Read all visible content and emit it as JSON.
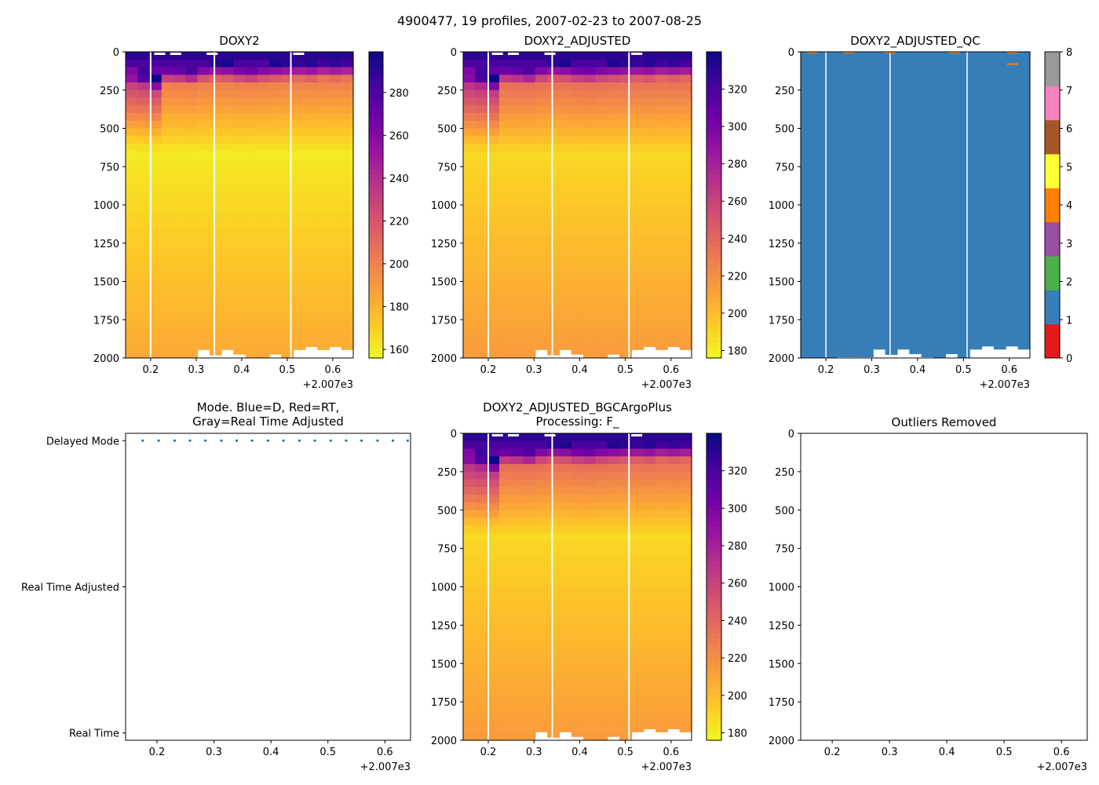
{
  "figure": {
    "suptitle": "4900477, 19 profiles, 2007-02-23 to 2007-08-25"
  },
  "palette": {
    "plasma_r": [
      "#f0f921",
      "#fdca26",
      "#fb9f3a",
      "#ed7953",
      "#d8576b",
      "#bd3786",
      "#9c179e",
      "#7201a8",
      "#46039f",
      "#0d0887"
    ],
    "qc": [
      "#e41a1c",
      "#377eb8",
      "#4daf4a",
      "#984ea3",
      "#ff7f00",
      "#ffff33",
      "#a65628",
      "#f781bf",
      "#999999"
    ],
    "mode_dot": "#1f77b4"
  },
  "chart_data": [
    {
      "id": "doxy2",
      "type": "heatmap",
      "title": "DOXY2",
      "xlabel": "",
      "ylabel": "",
      "x_offset_label": "+2.007e3",
      "xlim": [
        0.145,
        0.645
      ],
      "ylim": [
        2000,
        0
      ],
      "xticks": [
        "0.2",
        "0.3",
        "0.4",
        "0.5",
        "0.6"
      ],
      "yticks": [
        "0",
        "250",
        "500",
        "750",
        "1000",
        "1250",
        "1500",
        "1750",
        "2000"
      ],
      "colorbar": {
        "min": 156,
        "max": 299,
        "ticks": [
          "160",
          "180",
          "200",
          "220",
          "240",
          "260",
          "280"
        ]
      },
      "profile_times": [
        0.148,
        0.175,
        0.203,
        0.231,
        0.258,
        0.285,
        0.313,
        0.34,
        0.367,
        0.395,
        0.422,
        0.45,
        0.477,
        0.505,
        0.532,
        0.559,
        0.587,
        0.614,
        0.64
      ],
      "profile_max_depth": [
        2000,
        2000,
        2000,
        1995,
        1995,
        1995,
        1945,
        1980,
        1945,
        1975,
        1995,
        2000,
        1975,
        2000,
        1945,
        1925,
        1945,
        1925,
        1945
      ],
      "surface_layer_depth": [
        80,
        110,
        140,
        90,
        95,
        105,
        80,
        70,
        75,
        85,
        90,
        80,
        75,
        70,
        65,
        70,
        60,
        65,
        60
      ],
      "gap_lines": [
        0.2,
        0.34,
        0.508
      ],
      "data_gap_marks": [
        0.22,
        0.255,
        0.335,
        0.525
      ]
    },
    {
      "id": "doxy2-adjusted",
      "type": "heatmap",
      "title": "DOXY2_ADJUSTED",
      "xlabel": "",
      "ylabel": "",
      "x_offset_label": "+2.007e3",
      "xlim": [
        0.145,
        0.645
      ],
      "ylim": [
        2000,
        0
      ],
      "xticks": [
        "0.2",
        "0.3",
        "0.4",
        "0.5",
        "0.6"
      ],
      "yticks": [
        "0",
        "250",
        "500",
        "750",
        "1000",
        "1250",
        "1500",
        "1750",
        "2000"
      ],
      "colorbar": {
        "min": 176,
        "max": 340,
        "ticks": [
          "180",
          "200",
          "220",
          "240",
          "260",
          "280",
          "300",
          "320"
        ]
      },
      "profile_times": [
        0.148,
        0.175,
        0.203,
        0.231,
        0.258,
        0.285,
        0.313,
        0.34,
        0.367,
        0.395,
        0.422,
        0.45,
        0.477,
        0.505,
        0.532,
        0.559,
        0.587,
        0.614,
        0.64
      ],
      "profile_max_depth": [
        2000,
        2000,
        2000,
        1995,
        1995,
        1995,
        1945,
        1980,
        1945,
        1975,
        1995,
        2000,
        1975,
        2000,
        1945,
        1925,
        1945,
        1925,
        1945
      ],
      "surface_layer_depth": [
        80,
        110,
        140,
        90,
        95,
        105,
        80,
        70,
        75,
        85,
        90,
        80,
        75,
        70,
        65,
        70,
        60,
        65,
        60
      ],
      "gap_lines": [
        0.2,
        0.34,
        0.508
      ],
      "data_gap_marks": [
        0.22,
        0.255,
        0.335,
        0.525
      ]
    },
    {
      "id": "doxy2-adjusted-qc",
      "type": "heatmap",
      "title": "DOXY2_ADJUSTED_QC",
      "xlabel": "",
      "ylabel": "",
      "x_offset_label": "+2.007e3",
      "xlim": [
        0.145,
        0.645
      ],
      "ylim": [
        2000,
        0
      ],
      "xticks": [
        "0.2",
        "0.3",
        "0.4",
        "0.5",
        "0.6"
      ],
      "yticks": [
        "0",
        "250",
        "500",
        "750",
        "1000",
        "1250",
        "1500",
        "1750",
        "2000"
      ],
      "colorbar": {
        "min": 0,
        "max": 8,
        "ticks": [
          "0",
          "1",
          "2",
          "3",
          "4",
          "5",
          "6",
          "7",
          "8"
        ]
      },
      "fill_flag": 1,
      "flag4_marks": [
        {
          "x": 0.17,
          "depth": 10
        },
        {
          "x": 0.25,
          "depth": 10
        },
        {
          "x": 0.34,
          "depth": 10
        },
        {
          "x": 0.48,
          "depth": 10
        },
        {
          "x": 0.607,
          "depth": 10
        },
        {
          "x": 0.607,
          "depth": 85
        }
      ],
      "profile_max_depth": [
        2000,
        2000,
        2000,
        1995,
        1995,
        1995,
        1945,
        1980,
        1945,
        1975,
        1995,
        2000,
        1975,
        2000,
        1945,
        1925,
        1945,
        1925,
        1945
      ],
      "gap_lines": [
        0.2,
        0.34,
        0.508
      ]
    },
    {
      "id": "mode",
      "type": "scatter",
      "title_lines": [
        "Mode. Blue=D, Red=RT,",
        "Gray=Real Time Adjusted"
      ],
      "xlabel": "",
      "x_offset_label": "+2.007e3",
      "xlim": [
        0.145,
        0.645
      ],
      "xticks": [
        "0.2",
        "0.3",
        "0.4",
        "0.5",
        "0.6"
      ],
      "ycategories": [
        "Real Time",
        "Real Time Adjusted",
        "Delayed Mode"
      ],
      "ylim": [
        -0.05,
        2.05
      ],
      "x": [
        0.175,
        0.203,
        0.231,
        0.258,
        0.285,
        0.313,
        0.34,
        0.367,
        0.395,
        0.422,
        0.45,
        0.477,
        0.505,
        0.532,
        0.559,
        0.587,
        0.614,
        0.64
      ],
      "y": [
        2,
        2,
        2,
        2,
        2,
        2,
        2,
        2,
        2,
        2,
        2,
        2,
        2,
        2,
        2,
        2,
        2,
        2
      ]
    },
    {
      "id": "doxy2-bgc",
      "type": "heatmap",
      "title_lines": [
        "DOXY2_ADJUSTED_BGCArgoPlus",
        "Processing: F_"
      ],
      "xlabel": "",
      "ylabel": "",
      "x_offset_label": "+2.007e3",
      "xlim": [
        0.145,
        0.645
      ],
      "ylim": [
        2000,
        0
      ],
      "xticks": [
        "0.2",
        "0.3",
        "0.4",
        "0.5",
        "0.6"
      ],
      "yticks": [
        "0",
        "250",
        "500",
        "750",
        "1000",
        "1250",
        "1500",
        "1750",
        "2000"
      ],
      "colorbar": {
        "min": 176,
        "max": 340,
        "ticks": [
          "180",
          "200",
          "220",
          "240",
          "260",
          "280",
          "300",
          "320"
        ]
      },
      "profile_times": [
        0.148,
        0.175,
        0.203,
        0.231,
        0.258,
        0.285,
        0.313,
        0.34,
        0.367,
        0.395,
        0.422,
        0.45,
        0.477,
        0.505,
        0.532,
        0.559,
        0.587,
        0.614,
        0.64
      ],
      "profile_max_depth": [
        2000,
        2000,
        2000,
        1995,
        1995,
        1995,
        1945,
        1980,
        1945,
        1975,
        1995,
        2000,
        1975,
        2000,
        1945,
        1925,
        1945,
        1925,
        1945
      ],
      "surface_layer_depth": [
        80,
        110,
        140,
        90,
        95,
        105,
        80,
        70,
        75,
        85,
        90,
        80,
        75,
        70,
        65,
        70,
        60,
        65,
        60
      ],
      "gap_lines": [
        0.2,
        0.34,
        0.508
      ],
      "data_gap_marks": [
        0.22,
        0.255,
        0.335,
        0.525
      ]
    },
    {
      "id": "outliers",
      "type": "scatter",
      "title": "Outliers Removed",
      "xlabel": "",
      "x_offset_label": "+2.007e3",
      "xlim": [
        0.145,
        0.645
      ],
      "ylim": [
        2000,
        0
      ],
      "xticks": [
        "0.2",
        "0.3",
        "0.4",
        "0.5",
        "0.6"
      ],
      "yticks": [
        "0",
        "250",
        "500",
        "750",
        "1000",
        "1250",
        "1500",
        "1750",
        "2000"
      ],
      "x": [],
      "y": []
    }
  ]
}
